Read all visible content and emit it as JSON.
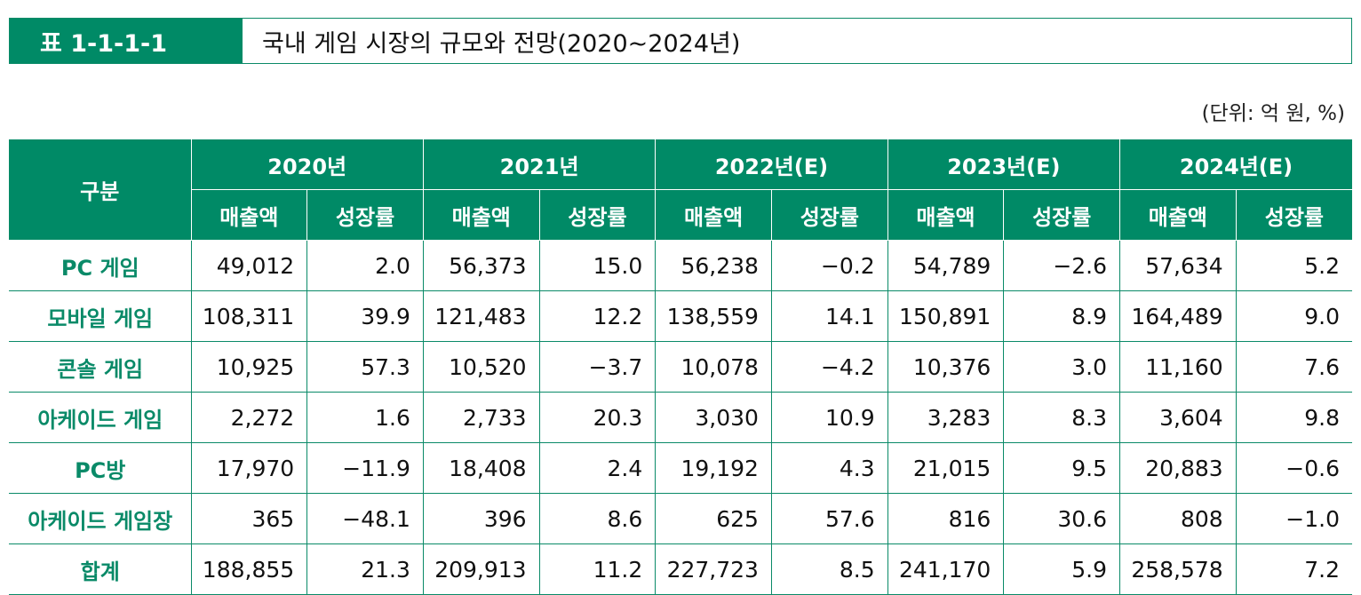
{
  "title": {
    "number": "표 1-1-1-1",
    "text": "국내 게임 시장의 규모와 전망(2020~2024년)"
  },
  "unit": "(단위: 억 원, %)",
  "colors": {
    "header_bg": "#008a66",
    "label_text": "#0a8a68"
  },
  "table": {
    "corner": "구분",
    "years": [
      "2020년",
      "2021년",
      "2022년(E)",
      "2023년(E)",
      "2024년(E)"
    ],
    "sub": [
      "매출액",
      "성장률"
    ],
    "rows": [
      {
        "label": "PC 게임",
        "cells": [
          "49,012",
          "2.0",
          "56,373",
          "15.0",
          "56,238",
          "−0.2",
          "54,789",
          "−2.6",
          "57,634",
          "5.2"
        ]
      },
      {
        "label": "모바일 게임",
        "cells": [
          "108,311",
          "39.9",
          "121,483",
          "12.2",
          "138,559",
          "14.1",
          "150,891",
          "8.9",
          "164,489",
          "9.0"
        ]
      },
      {
        "label": "콘솔 게임",
        "cells": [
          "10,925",
          "57.3",
          "10,520",
          "−3.7",
          "10,078",
          "−4.2",
          "10,376",
          "3.0",
          "11,160",
          "7.6"
        ]
      },
      {
        "label": "아케이드 게임",
        "cells": [
          "2,272",
          "1.6",
          "2,733",
          "20.3",
          "3,030",
          "10.9",
          "3,283",
          "8.3",
          "3,604",
          "9.8"
        ]
      },
      {
        "label": "PC방",
        "cells": [
          "17,970",
          "−11.9",
          "18,408",
          "2.4",
          "19,192",
          "4.3",
          "21,015",
          "9.5",
          "20,883",
          "−0.6"
        ]
      },
      {
        "label": "아케이드 게임장",
        "cells": [
          "365",
          "−48.1",
          "396",
          "8.6",
          "625",
          "57.6",
          "816",
          "30.6",
          "808",
          "−1.0"
        ]
      },
      {
        "label": "합계",
        "cells": [
          "188,855",
          "21.3",
          "209,913",
          "11.2",
          "227,723",
          "8.5",
          "241,170",
          "5.9",
          "258,578",
          "7.2"
        ]
      }
    ]
  }
}
